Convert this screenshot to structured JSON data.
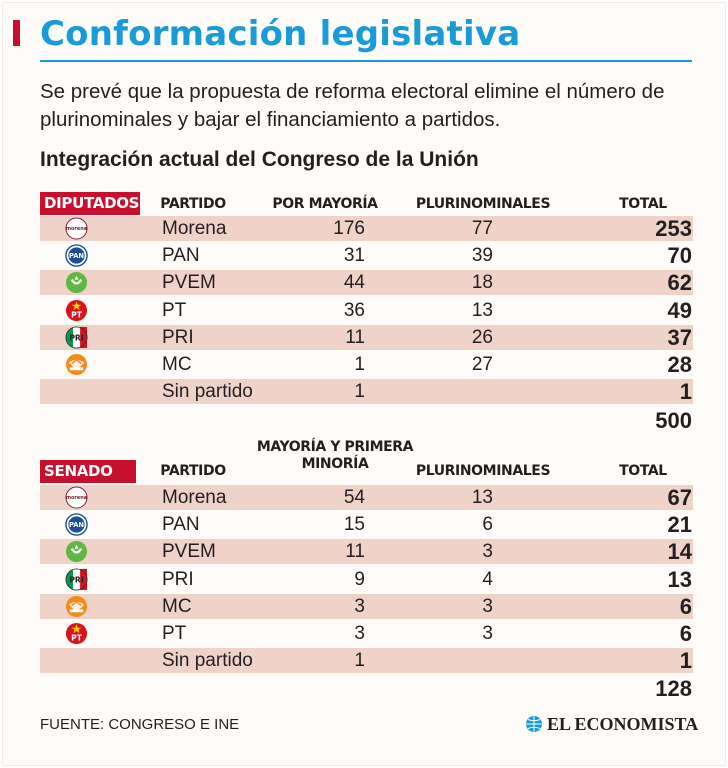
{
  "title": "Conformación legislativa",
  "subtitle": "Se prevé que la propuesta de reforma electoral elimine el número de plurinominales y bajar el financiamiento a partidos.",
  "section_title": "Integración actual del Congreso de la Unión",
  "source": "FUENTE: CONGRESO E INE",
  "brand": "EL ECONOMISTA",
  "colors": {
    "title": "#1a9ad7",
    "tag": "#c8102e",
    "row_band": "#efd3c8"
  },
  "chart_data": [
    {
      "type": "table",
      "tag": "DIPUTADOS",
      "columns": [
        "PARTIDO",
        "POR MAYORÍA",
        "PLURINOMINALES",
        "TOTAL"
      ],
      "rows": [
        {
          "logo": "morena-icon",
          "party": "Morena",
          "a": "176",
          "b": "77",
          "total": "253"
        },
        {
          "logo": "pan-icon",
          "party": "PAN",
          "a": "31",
          "b": "39",
          "total": "70"
        },
        {
          "logo": "pvem-icon",
          "party": "PVEM",
          "a": "44",
          "b": "18",
          "total": "62"
        },
        {
          "logo": "pt-icon",
          "party": "PT",
          "a": "36",
          "b": "13",
          "total": "49"
        },
        {
          "logo": "pri-icon",
          "party": "PRI",
          "a": "11",
          "b": "26",
          "total": "37"
        },
        {
          "logo": "mc-icon",
          "party": "MC",
          "a": "1",
          "b": "27",
          "total": "28"
        },
        {
          "logo": "",
          "party": "Sin partido",
          "a": "1",
          "b": "",
          "total": "1"
        }
      ],
      "grand_total": "500"
    },
    {
      "type": "table",
      "tag": "SENADO",
      "columns": [
        "PARTIDO",
        "MAYORÍA Y  PRIMERA MINORÍA",
        "PLURINOMINALES",
        "TOTAL"
      ],
      "rows": [
        {
          "logo": "morena-icon",
          "party": "Morena",
          "a": "54",
          "b": "13",
          "total": "67"
        },
        {
          "logo": "pan-icon",
          "party": "PAN",
          "a": "15",
          "b": "6",
          "total": "21"
        },
        {
          "logo": "pvem-icon",
          "party": "PVEM",
          "a": "11",
          "b": "3",
          "total": "14"
        },
        {
          "logo": "pri-icon",
          "party": "PRI",
          "a": "9",
          "b": "4",
          "total": "13"
        },
        {
          "logo": "mc-icon",
          "party": "MC",
          "a": "3",
          "b": "3",
          "total": "6"
        },
        {
          "logo": "pt-icon",
          "party": "PT",
          "a": "3",
          "b": "3",
          "total": "6"
        },
        {
          "logo": "",
          "party": "Sin partido",
          "a": "1",
          "b": "",
          "total": "1"
        }
      ],
      "grand_total": "128"
    }
  ]
}
